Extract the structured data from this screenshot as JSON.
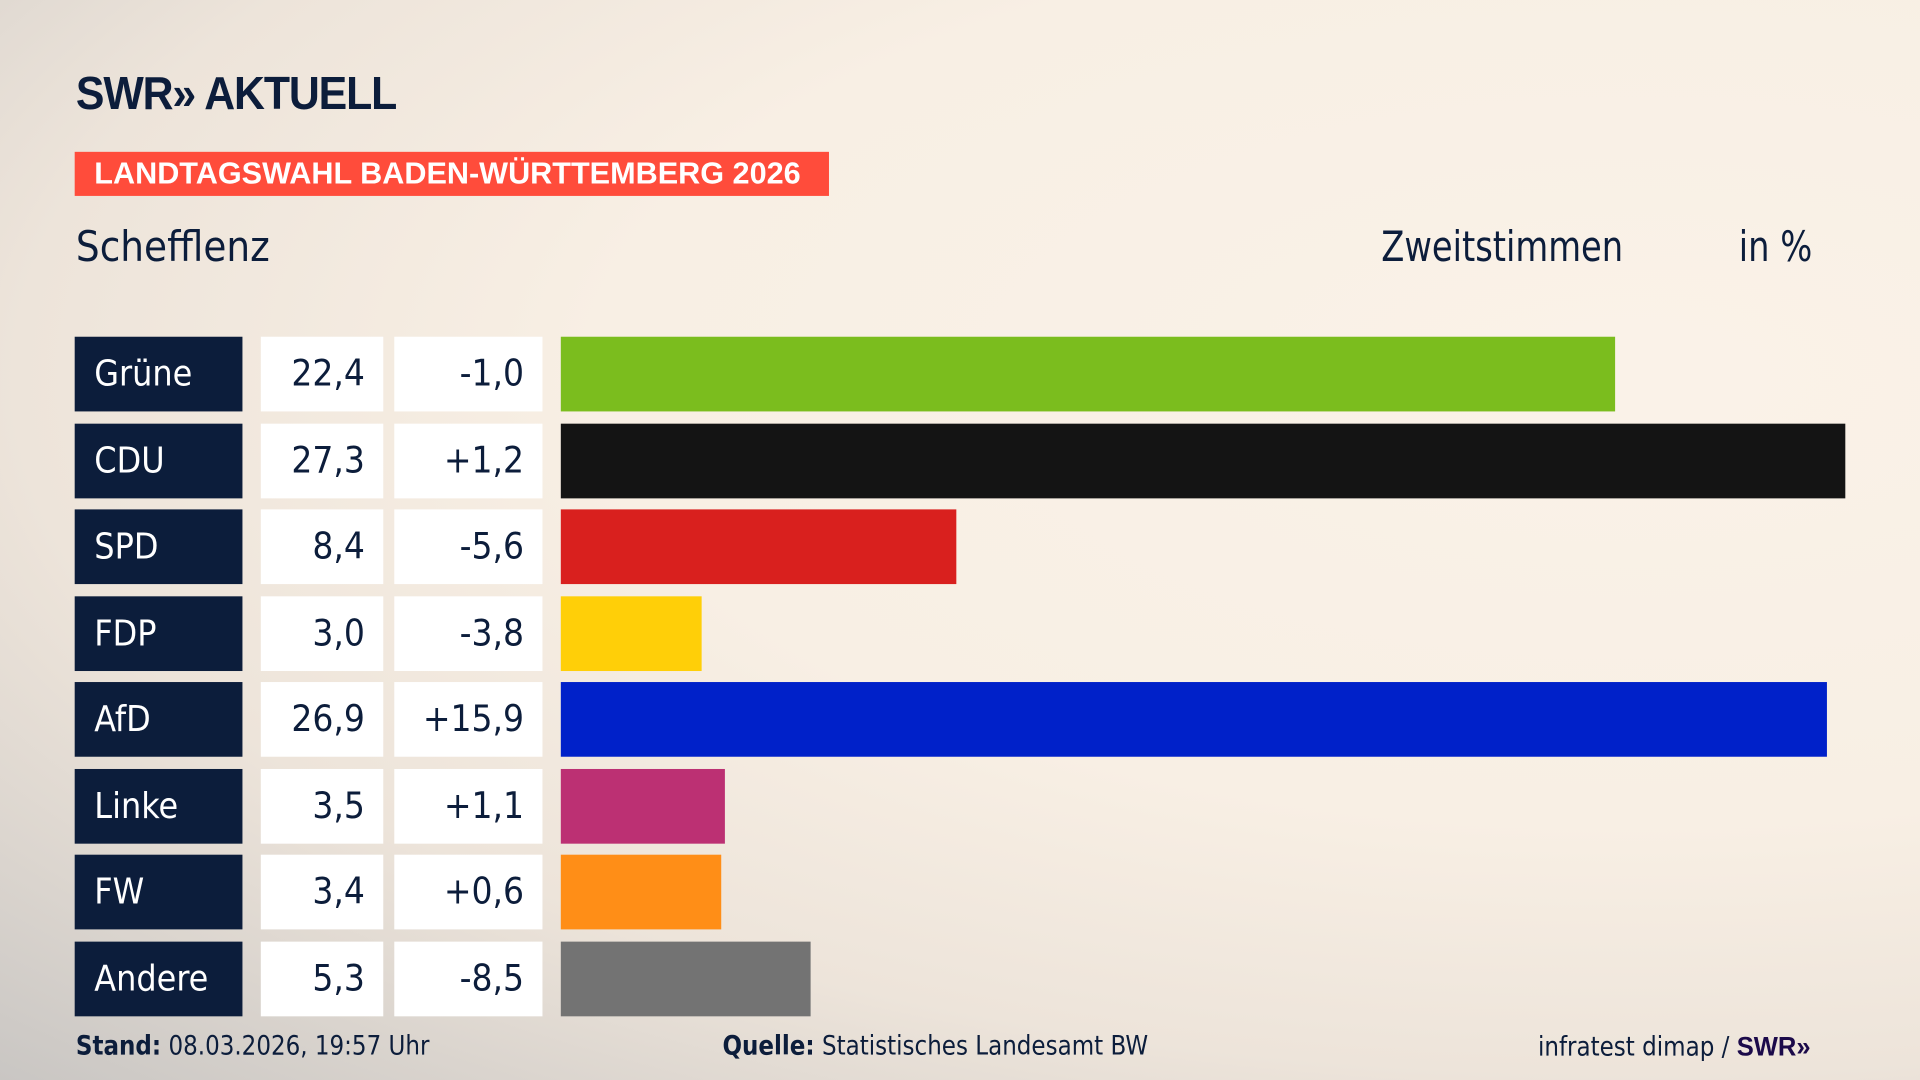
{
  "header": {
    "logo": "SWR» AKTUELL",
    "banner": "LANDTAGSWAHL BADEN-WÜRTTEMBERG 2026",
    "place": "Schefflenz",
    "metric": "Zweitstimmen",
    "unit": "in %"
  },
  "chart_data": {
    "type": "bar",
    "orientation": "horizontal",
    "xlim": [
      0,
      27.3
    ],
    "categories": [
      "Grüne",
      "CDU",
      "SPD",
      "FDP",
      "AfD",
      "Linke",
      "FW",
      "Andere"
    ],
    "values": [
      22.4,
      27.3,
      8.4,
      3.0,
      26.9,
      3.5,
      3.4,
      5.3
    ],
    "value_labels": [
      "22,4",
      "27,3",
      "8,4",
      "3,0",
      "26,9",
      "3,5",
      "3,4",
      "5,3"
    ],
    "diff_labels": [
      "-1,0",
      "+1,2",
      "-5,6",
      "-3,8",
      "+15,9",
      "+1,1",
      "+0,6",
      "-8,5"
    ],
    "colors": [
      "#7bbd1e",
      "#141414",
      "#d9201e",
      "#ffcf08",
      "#0021c9",
      "#bc3073",
      "#ff8e17",
      "#737373"
    ]
  },
  "footer": {
    "stand_label": "Stand:",
    "stand_value": "08.03.2026, 19:57 Uhr",
    "source_label": "Quelle:",
    "source_value": "Statistisches Landesamt BW",
    "credit": "infratest dimap / ",
    "credit_logo": "SWR»"
  }
}
